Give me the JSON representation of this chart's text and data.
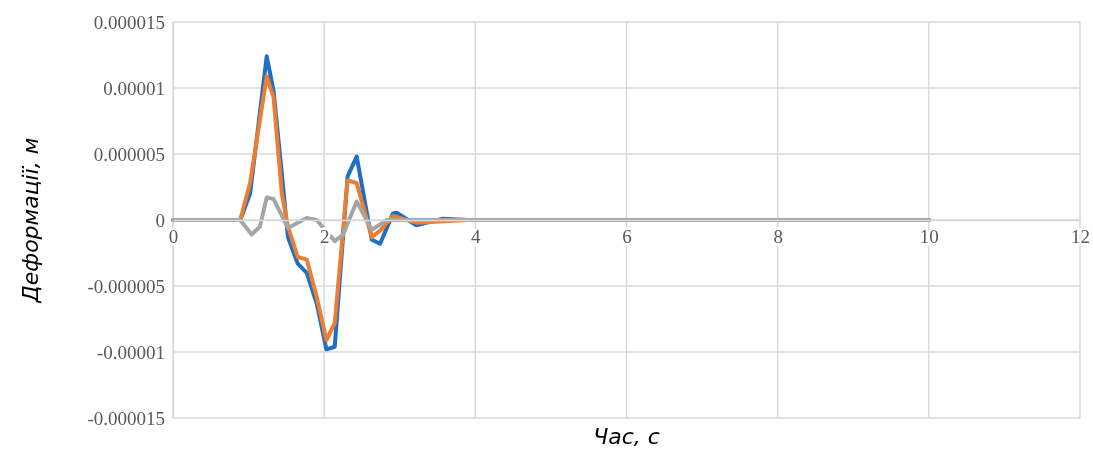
{
  "chart_data": {
    "type": "line",
    "xlabel": "Час, с",
    "ylabel": "Деформації, м",
    "xlim": [
      0,
      12
    ],
    "xticks": [
      0,
      2,
      4,
      6,
      8,
      10,
      12
    ],
    "ylim": [
      -1.5e-05,
      1.5e-05
    ],
    "yticks": [
      {
        "value": -1.5e-05,
        "label": "-0.000015"
      },
      {
        "value": -1e-05,
        "label": "-0.00001"
      },
      {
        "value": -5e-06,
        "label": "-0.000005"
      },
      0,
      {
        "value": 5e-06,
        "label": "0.000005"
      },
      {
        "value": 1e-05,
        "label": "0.00001"
      },
      {
        "value": 1.5e-05,
        "label": "0.000015"
      }
    ],
    "grid": true,
    "marker": "none",
    "line_style": "solid",
    "series": [
      {
        "color": "#1f6fc5",
        "x": [
          0,
          0.89,
          1.02,
          1.24,
          1.33,
          1.44,
          1.52,
          1.65,
          1.77,
          1.9,
          2.03,
          2.14,
          2.31,
          2.43,
          2.63,
          2.74,
          2.91,
          2.96,
          3.22,
          3.57,
          3.9,
          10
        ],
        "values": [
          0,
          0,
          2e-06,
          1.24e-05,
          9.8e-06,
          3.5e-06,
          -1.3e-06,
          -3.3e-06,
          -4e-06,
          -6.3e-06,
          -9.8e-06,
          -9.6e-06,
          3.3e-06,
          4.8e-06,
          -1.5e-06,
          -1.8e-06,
          5e-07,
          5.5e-07,
          -4e-07,
          1e-07,
          0,
          0
        ]
      },
      {
        "color": "#ed7d31",
        "x": [
          0,
          0.89,
          1.02,
          1.24,
          1.33,
          1.44,
          1.52,
          1.65,
          1.77,
          1.9,
          2.03,
          2.14,
          2.31,
          2.43,
          2.63,
          2.74,
          2.91,
          3.22,
          3.9,
          10
        ],
        "values": [
          0,
          0,
          2.8e-06,
          1.09e-05,
          9.3e-06,
          2e-06,
          -5e-07,
          -2.8e-06,
          -3e-06,
          -5.8e-06,
          -9.1e-06,
          -7.8e-06,
          3e-06,
          2.8e-06,
          -1.3e-06,
          -8e-07,
          3e-07,
          -2e-07,
          0,
          0
        ]
      },
      {
        "color": "#a5a5a5",
        "x": [
          0,
          0.89,
          1.04,
          1.15,
          1.24,
          1.33,
          1.52,
          1.77,
          1.9,
          2.14,
          2.25,
          2.43,
          2.63,
          2.83,
          10
        ],
        "values": [
          0,
          0,
          -1.1e-06,
          -5e-07,
          1.7e-06,
          1.6e-06,
          -6e-07,
          1.5e-07,
          0,
          -1.6e-06,
          -1.1e-06,
          1.4e-06,
          -7.5e-07,
          0,
          0
        ]
      }
    ]
  }
}
